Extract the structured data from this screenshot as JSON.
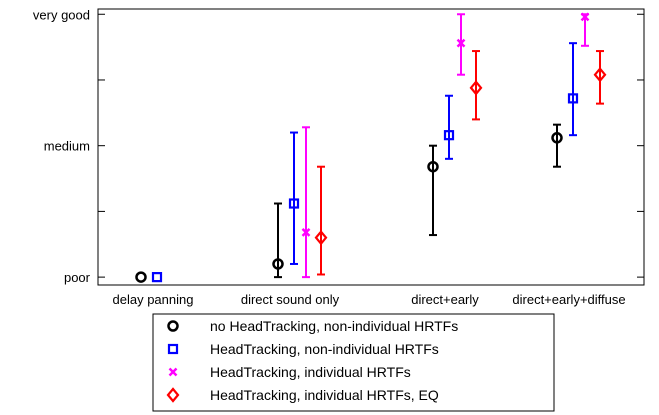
{
  "chart_data": {
    "type": "scatter",
    "categories": [
      "delay panning",
      "direct sound only",
      "direct+early",
      "direct+early+diffuse"
    ],
    "y_tick_labels": [
      {
        "value": 0,
        "label": "poor"
      },
      {
        "value": 50,
        "label": "medium"
      },
      {
        "value": 100,
        "label": "very good"
      }
    ],
    "ylim": [
      -3,
      102
    ],
    "grid": false,
    "legend_placement": "bottom",
    "series": [
      {
        "name": "no HeadTracking, non-individual HRTFs",
        "color": "#000000",
        "marker": "circle",
        "points": [
          {
            "category": 0,
            "y": 0,
            "low": null,
            "high": null
          },
          {
            "category": 1,
            "y": 5,
            "low": 0,
            "high": 28
          },
          {
            "category": 2,
            "y": 42,
            "low": 16,
            "high": 50
          },
          {
            "category": 3,
            "y": 53,
            "low": 42,
            "high": 58
          }
        ]
      },
      {
        "name": "HeadTracking, non-individual HRTFs",
        "color": "#0000ff",
        "marker": "square",
        "points": [
          {
            "category": 0,
            "y": 0,
            "low": null,
            "high": null
          },
          {
            "category": 1,
            "y": 28,
            "low": 5,
            "high": 55
          },
          {
            "category": 2,
            "y": 54,
            "low": 45,
            "high": 69
          },
          {
            "category": 3,
            "y": 68,
            "low": 54,
            "high": 89
          }
        ]
      },
      {
        "name": "HeadTracking, individual HRTFs",
        "color": "#ff00ff",
        "marker": "x",
        "points": [
          {
            "category": 1,
            "y": 17,
            "low": 0,
            "high": 57
          },
          {
            "category": 2,
            "y": 89,
            "low": 77,
            "high": 100
          },
          {
            "category": 3,
            "y": 99,
            "low": 88,
            "high": 100
          }
        ]
      },
      {
        "name": "HeadTracking, individual HRTFs, EQ",
        "color": "#ff0000",
        "marker": "diamond",
        "points": [
          {
            "category": 1,
            "y": 15,
            "low": 1,
            "high": 42
          },
          {
            "category": 2,
            "y": 72,
            "low": 60,
            "high": 86
          },
          {
            "category": 3,
            "y": 77,
            "low": 66,
            "high": 86
          }
        ]
      }
    ]
  }
}
